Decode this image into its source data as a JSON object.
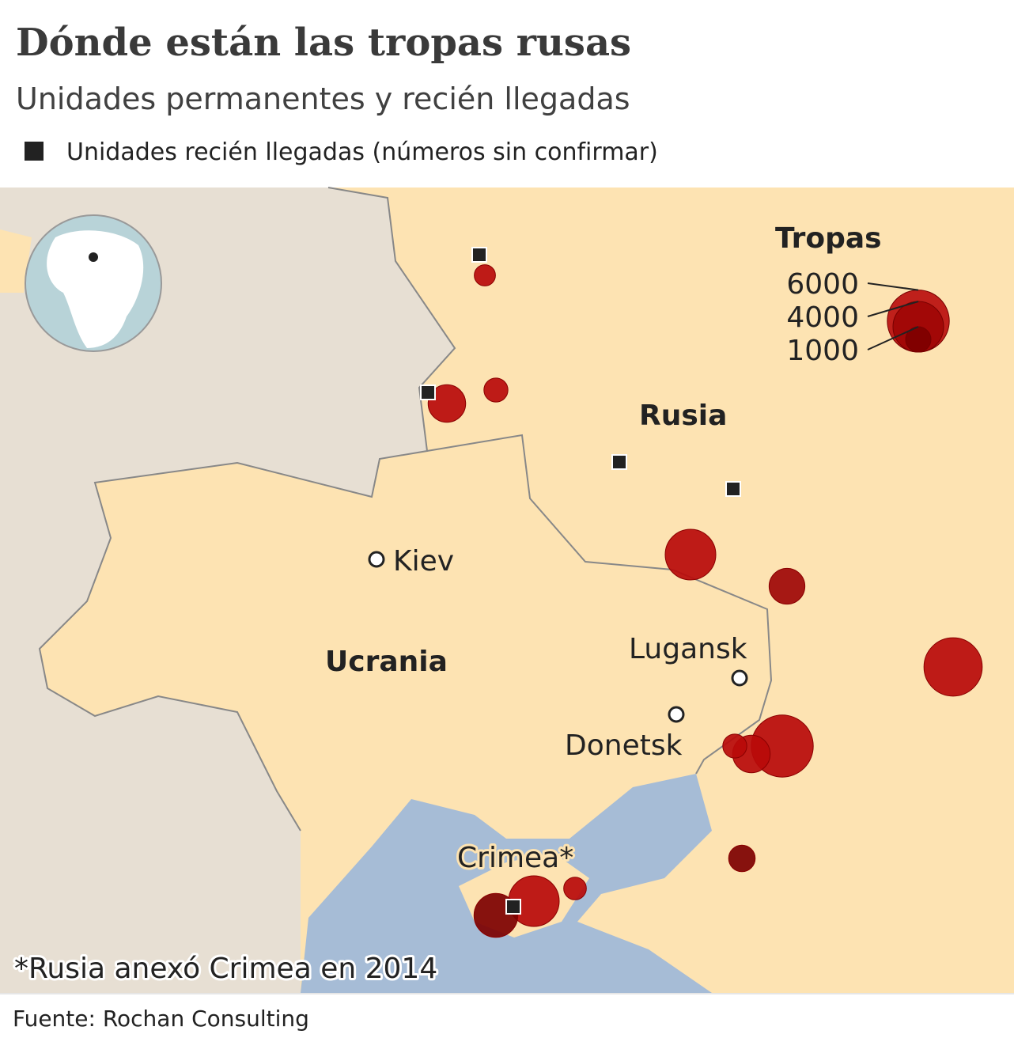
{
  "header": {
    "title": "Dónde están las tropas rusas",
    "subtitle": "Unidades permanentes y recién llegadas",
    "legend": "Unidades recién llegadas (números sin confirmar)"
  },
  "size_legend": {
    "title": "Tropas",
    "values": [
      6000,
      4000,
      1000
    ]
  },
  "labels": {
    "russia": "Rusia",
    "ukraine": "Ucrania",
    "kiev": "Kiev",
    "lugansk": "Lugansk",
    "donetsk": "Donetsk",
    "crimea": "Crimea*"
  },
  "units": {
    "troops": [
      700,
      900,
      2200,
      4000,
      2000,
      5300,
      6000,
      2200,
      900,
      1100,
      4000,
      3000,
      800
    ]
  },
  "footnote": "*Rusia anexó Crimea en 2014",
  "source": "Fuente: Rochan Consulting"
}
